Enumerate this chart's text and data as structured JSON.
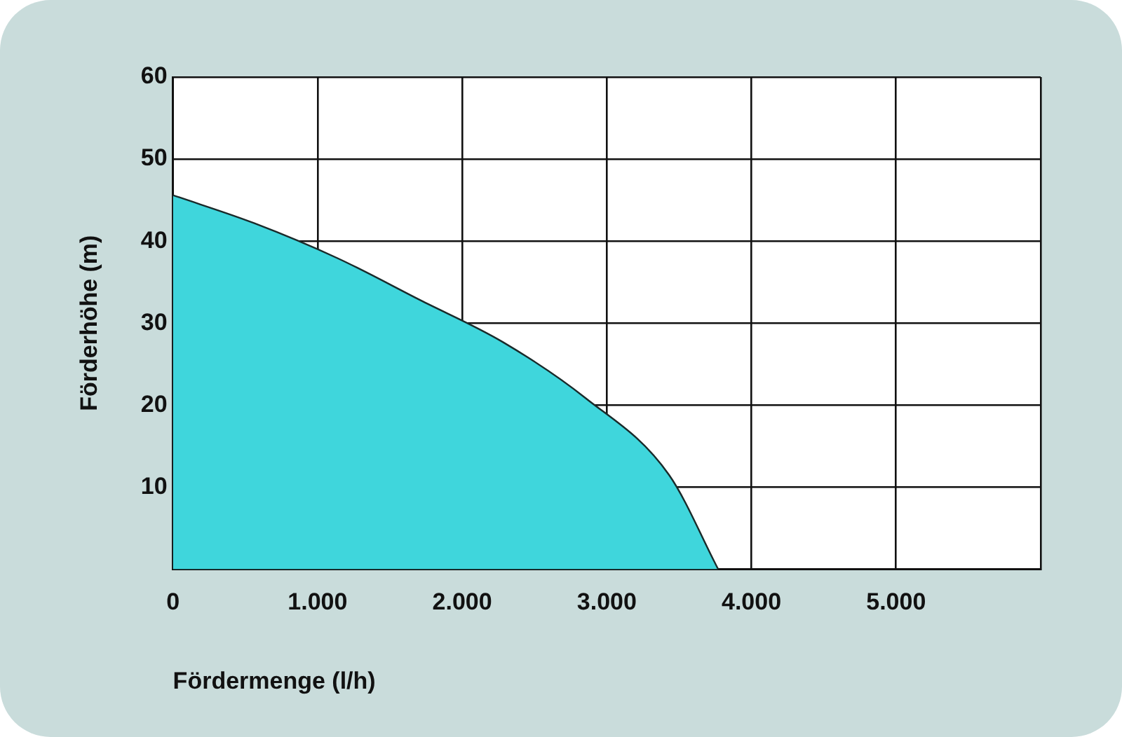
{
  "chart_data": {
    "type": "area",
    "xlabel": "Fördermenge (l/h)",
    "ylabel": "Förderhöhe (m)",
    "x": [
      0,
      560,
      1140,
      1710,
      2280,
      2850,
      3430,
      3770
    ],
    "series": [
      {
        "color": "#3fd6dc",
        "values": [
          45.6,
          42.2,
          37.9,
          32.8,
          27.7,
          20.9,
          11.5,
          0
        ]
      }
    ],
    "xlim": [
      0,
      6000
    ],
    "xticks": [
      0,
      {
        "value": 1000,
        "label": "1.000"
      },
      {
        "value": 2000,
        "label": "2.000"
      },
      {
        "value": 3000,
        "label": "3.000"
      },
      {
        "value": 4000,
        "label": "4.000"
      },
      {
        "value": 5000,
        "label": "5.000"
      },
      {
        "value": 6000,
        "label": null
      }
    ],
    "ylim": [
      0,
      60
    ],
    "yticks": [
      {
        "value": 0,
        "label": null
      },
      10,
      20,
      30,
      40,
      50,
      60
    ],
    "grid": true
  }
}
